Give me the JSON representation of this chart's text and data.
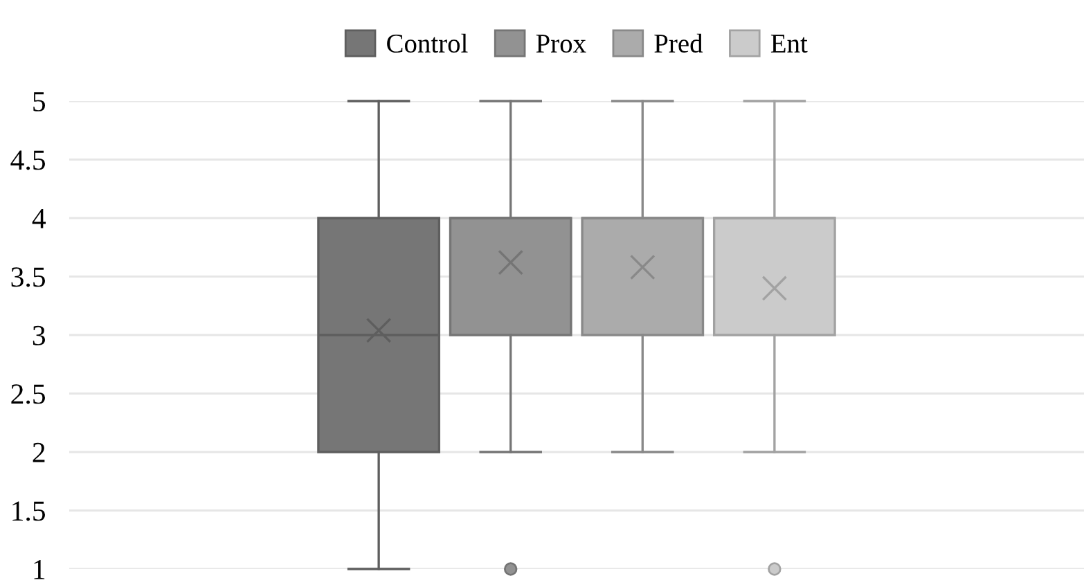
{
  "chart_data": {
    "type": "box",
    "categories": [
      null
    ],
    "series": [
      {
        "name": "Control",
        "color": "#767676",
        "boxes": [
          {
            "low": 1,
            "q1": 2,
            "median": 3,
            "q3": 4,
            "high": 5,
            "mean": 3.04
          }
        ]
      },
      {
        "name": "Prox",
        "color": "#929292",
        "boxes": [
          {
            "low": 2,
            "q1": 3,
            "median": 4,
            "q3": 4,
            "high": 5,
            "mean": 3.62,
            "outliers": [
              1
            ]
          }
        ]
      },
      {
        "name": "Pred",
        "color": "#ababab",
        "boxes": [
          {
            "low": 2,
            "q1": 3,
            "median": 4,
            "q3": 4,
            "high": 5,
            "mean": 3.58
          }
        ]
      },
      {
        "name": "Ent",
        "color": "#cbcbcb",
        "boxes": [
          {
            "low": 2,
            "q1": 3,
            "median": 4,
            "q3": 4,
            "high": 5,
            "mean": 3.4,
            "outliers": [
              1
            ]
          }
        ]
      }
    ],
    "ylim": [
      1,
      5
    ],
    "yticks": [
      1,
      1.5,
      2,
      2.5,
      3,
      3.5,
      4,
      4.5,
      5
    ],
    "grid": "y",
    "legend": "top",
    "marker": "cross"
  }
}
